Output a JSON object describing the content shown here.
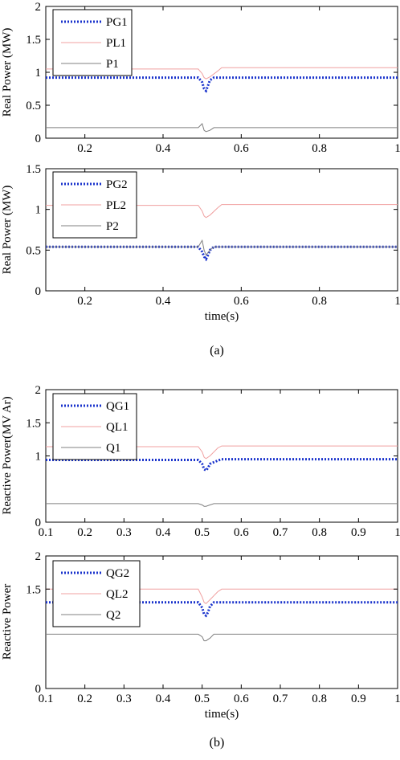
{
  "figure": {
    "caption_a": "(a)",
    "caption_b": "(b)"
  },
  "chart_data": [
    {
      "type": "line",
      "panel": "a-top",
      "title": "",
      "xlabel": "",
      "ylabel": "Real Power (MW)",
      "xlim": [
        0.1,
        1.0
      ],
      "ylim": [
        0,
        2
      ],
      "xticks": [
        0.2,
        0.4,
        0.6,
        0.8,
        1
      ],
      "yticks": [
        0,
        0.5,
        1,
        1.5,
        2
      ],
      "xtick_labels": [
        "0.2",
        "0.4",
        "0.6",
        "0.8",
        "1"
      ],
      "ytick_labels": [
        "0",
        "0.5",
        "1",
        "1.5",
        "2"
      ],
      "grid": false,
      "legend_position": "top-left",
      "series": [
        {
          "name": "PG1",
          "color": "#1a33cc",
          "style": "dotted",
          "x": [
            0.1,
            0.49,
            0.5,
            0.505,
            0.51,
            0.515,
            0.52,
            0.53,
            1.0
          ],
          "y": [
            0.92,
            0.92,
            0.85,
            0.75,
            0.72,
            0.8,
            0.88,
            0.92,
            0.92
          ]
        },
        {
          "name": "PL1",
          "color": "#f0a0a0",
          "style": "solid",
          "x": [
            0.1,
            0.49,
            0.5,
            0.505,
            0.51,
            0.52,
            0.54,
            0.55,
            1.0
          ],
          "y": [
            1.05,
            1.05,
            0.98,
            0.92,
            0.9,
            0.93,
            1.02,
            1.07,
            1.07
          ]
        },
        {
          "name": "P1",
          "color": "#808080",
          "style": "solid",
          "x": [
            0.1,
            0.49,
            0.5,
            0.505,
            0.51,
            0.52,
            0.53,
            1.0
          ],
          "y": [
            0.16,
            0.16,
            0.22,
            0.12,
            0.1,
            0.12,
            0.16,
            0.16
          ]
        }
      ]
    },
    {
      "type": "line",
      "panel": "a-bottom",
      "title": "",
      "xlabel": "time(s)",
      "ylabel": "Real Power (MW)",
      "xlim": [
        0.1,
        1.0
      ],
      "ylim": [
        0,
        1.5
      ],
      "xticks": [
        0.2,
        0.4,
        0.6,
        0.8,
        1
      ],
      "yticks": [
        0,
        0.5,
        1,
        1.5
      ],
      "xtick_labels": [
        "0.2",
        "0.4",
        "0.6",
        "0.8",
        "1"
      ],
      "ytick_labels": [
        "0",
        "0.5",
        "1",
        "1.5"
      ],
      "grid": false,
      "legend_position": "top-left",
      "series": [
        {
          "name": "PG2",
          "color": "#1a33cc",
          "style": "dotted",
          "x": [
            0.1,
            0.49,
            0.5,
            0.505,
            0.51,
            0.515,
            0.52,
            0.53,
            1.0
          ],
          "y": [
            0.54,
            0.54,
            0.48,
            0.42,
            0.39,
            0.44,
            0.5,
            0.54,
            0.54
          ]
        },
        {
          "name": "PL2",
          "color": "#f0a0a0",
          "style": "solid",
          "x": [
            0.1,
            0.49,
            0.5,
            0.505,
            0.51,
            0.52,
            0.54,
            0.55,
            1.0
          ],
          "y": [
            1.05,
            1.05,
            0.98,
            0.92,
            0.9,
            0.93,
            1.02,
            1.06,
            1.06
          ]
        },
        {
          "name": "P2",
          "color": "#808080",
          "style": "solid",
          "x": [
            0.1,
            0.49,
            0.5,
            0.505,
            0.51,
            0.52,
            0.53,
            1.0
          ],
          "y": [
            0.54,
            0.54,
            0.62,
            0.5,
            0.44,
            0.5,
            0.54,
            0.54
          ]
        }
      ]
    },
    {
      "type": "line",
      "panel": "b-top",
      "title": "",
      "xlabel": "",
      "ylabel": "Reactive Power(MV Ar)",
      "xlim": [
        0.1,
        1.0
      ],
      "ylim": [
        0,
        2
      ],
      "xticks": [
        0.1,
        0.2,
        0.3,
        0.4,
        0.5,
        0.6,
        0.7,
        0.8,
        0.9,
        1
      ],
      "yticks": [
        0,
        1,
        1.5,
        2
      ],
      "xtick_labels": [
        "0.1",
        "0.2",
        "0.3",
        "0.4",
        "0.5",
        "0.6",
        "0.7",
        "0.8",
        "0.9",
        "1"
      ],
      "ytick_labels": [
        "0",
        "1",
        "1.5",
        "2"
      ],
      "grid": false,
      "legend_position": "top-left",
      "series": [
        {
          "name": "QG1",
          "color": "#1a33cc",
          "style": "dotted",
          "x": [
            0.1,
            0.49,
            0.5,
            0.505,
            0.51,
            0.515,
            0.52,
            0.54,
            0.55,
            1.0
          ],
          "y": [
            0.94,
            0.94,
            0.88,
            0.8,
            0.78,
            0.82,
            0.88,
            0.93,
            0.95,
            0.95
          ]
        },
        {
          "name": "QL1",
          "color": "#f0a0a0",
          "style": "solid",
          "x": [
            0.1,
            0.49,
            0.5,
            0.505,
            0.51,
            0.52,
            0.54,
            0.55,
            1.0
          ],
          "y": [
            1.14,
            1.14,
            1.06,
            0.98,
            0.96,
            1.0,
            1.12,
            1.15,
            1.15
          ]
        },
        {
          "name": "Q1",
          "color": "#808080",
          "style": "solid",
          "x": [
            0.1,
            0.49,
            0.5,
            0.505,
            0.51,
            0.52,
            0.53,
            1.0
          ],
          "y": [
            0.28,
            0.28,
            0.26,
            0.24,
            0.24,
            0.26,
            0.28,
            0.28
          ]
        }
      ]
    },
    {
      "type": "line",
      "panel": "b-bottom",
      "title": "",
      "xlabel": "time(s)",
      "ylabel": "Reactive Power",
      "xlim": [
        0.1,
        1.0
      ],
      "ylim": [
        0,
        2
      ],
      "xticks": [
        0.1,
        0.2,
        0.3,
        0.4,
        0.5,
        0.6,
        0.7,
        0.8,
        0.9,
        1
      ],
      "yticks": [
        0,
        1.5,
        2
      ],
      "xtick_labels": [
        "0.1",
        "0.2",
        "0.3",
        "0.4",
        "0.5",
        "0.6",
        "0.7",
        "0.8",
        "0.9",
        "1"
      ],
      "ytick_labels": [
        "0",
        "1.5",
        "2"
      ],
      "grid": false,
      "legend_position": "top-left",
      "series": [
        {
          "name": "QG2",
          "color": "#1a33cc",
          "style": "dotted",
          "x": [
            0.1,
            0.49,
            0.5,
            0.505,
            0.51,
            0.515,
            0.52,
            0.53,
            1.0
          ],
          "y": [
            1.3,
            1.3,
            1.22,
            1.12,
            1.1,
            1.15,
            1.24,
            1.3,
            1.3
          ]
        },
        {
          "name": "QL2",
          "color": "#f0a0a0",
          "style": "solid",
          "x": [
            0.1,
            0.49,
            0.5,
            0.505,
            0.51,
            0.52,
            0.54,
            0.55,
            1.0
          ],
          "y": [
            1.5,
            1.5,
            1.38,
            1.3,
            1.28,
            1.34,
            1.46,
            1.5,
            1.5
          ]
        },
        {
          "name": "Q2",
          "color": "#808080",
          "style": "solid",
          "x": [
            0.1,
            0.49,
            0.5,
            0.505,
            0.51,
            0.52,
            0.53,
            1.0
          ],
          "y": [
            0.82,
            0.82,
            0.78,
            0.72,
            0.72,
            0.76,
            0.82,
            0.82
          ]
        }
      ]
    }
  ]
}
